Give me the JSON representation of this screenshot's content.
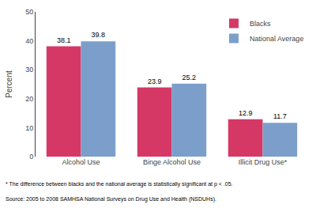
{
  "chart_data": {
    "type": "bar",
    "categories": [
      "Alcohol Use",
      "Binge Alcohol Use",
      "Illicit Drug Use*"
    ],
    "series": [
      {
        "name": "Blacks",
        "color": "#D63865",
        "values": [
          38.1,
          23.9,
          12.9
        ]
      },
      {
        "name": "National Average",
        "color": "#7B9FCA",
        "values": [
          39.8,
          25.2,
          11.7
        ]
      }
    ],
    "ylabel": "Percent",
    "ylim": [
      0,
      50
    ],
    "yticks": [
      0,
      10,
      20,
      30,
      40,
      50
    ],
    "grid": false,
    "legend": "upper right",
    "data_labels": true,
    "annotations": [
      "* The difference between blacks and the national average is statistically significant at p < .05.",
      "Source: 2005 to 2008 SAMHSA National Surveys on Drug Use and Health (NSDUHs)."
    ]
  }
}
